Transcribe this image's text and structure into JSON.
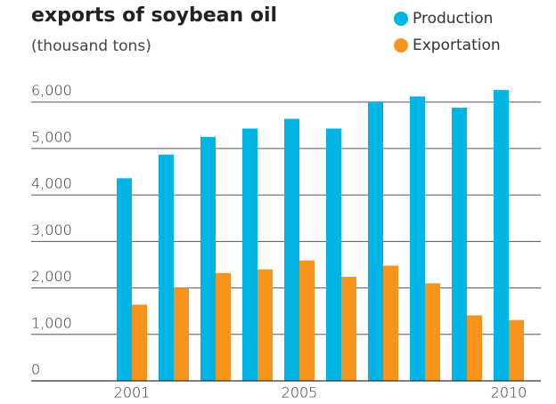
{
  "chart_data": {
    "type": "bar",
    "title": "exports of soybean oil",
    "subtitle": "(thousand tons)",
    "categories": [
      "2001",
      null,
      null,
      null,
      "2005",
      null,
      null,
      null,
      null,
      "2010"
    ],
    "series": [
      {
        "name": "Production",
        "color": "#00b4e6",
        "values": [
          4360,
          4870,
          5250,
          5430,
          5640,
          5430,
          6000,
          6120,
          5880,
          6260
        ]
      },
      {
        "name": "Exportation",
        "color": "#f7941d",
        "values": [
          1640,
          2000,
          2320,
          2400,
          2590,
          2240,
          2480,
          2100,
          1410,
          1310
        ]
      }
    ],
    "ylim": [
      0,
      6500
    ],
    "yticks": [
      0,
      {
        "value": 1000,
        "label": "1,000"
      },
      {
        "value": 2000,
        "label": "2,000"
      },
      {
        "value": 3000,
        "label": "3,000"
      },
      {
        "value": 4000,
        "label": "4,000"
      },
      {
        "value": 5000,
        "label": "5,000"
      },
      {
        "value": 6000,
        "label": "6,000"
      }
    ],
    "grid": true,
    "legend": "top-right"
  }
}
